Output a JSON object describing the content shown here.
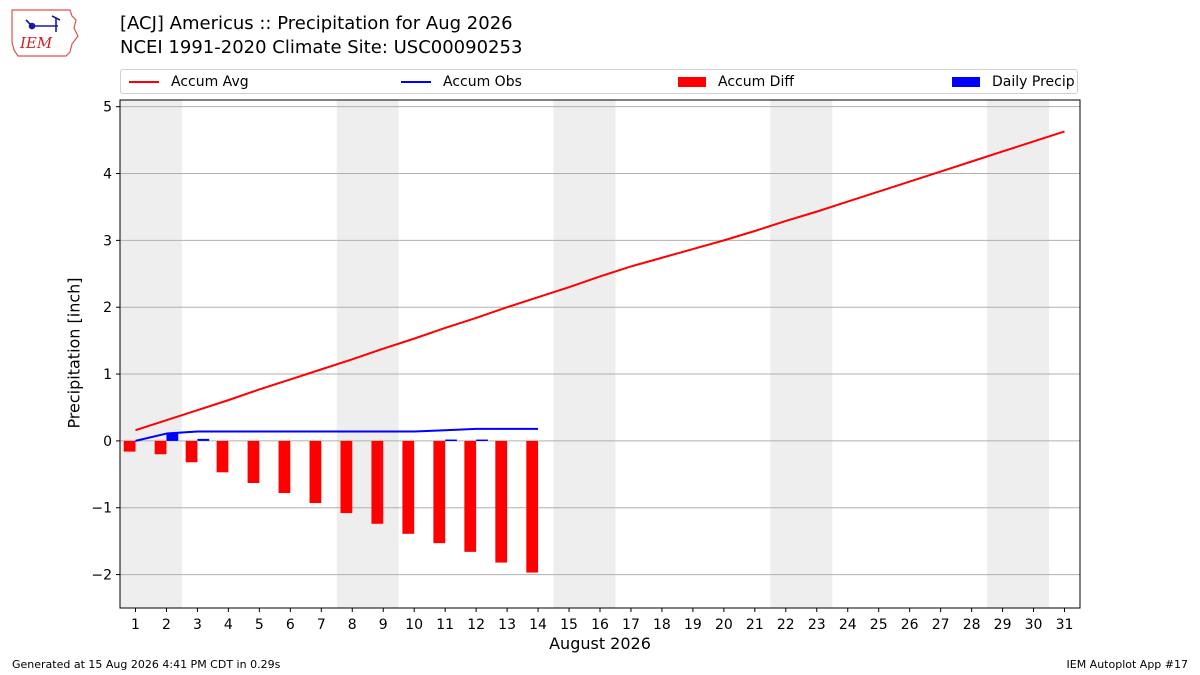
{
  "header": {
    "logo_text": "IEM",
    "title_line1": "[ACJ] Americus :: Precipitation for Aug 2026",
    "title_line2": "NCEI 1991-2020 Climate Site: USC00090253"
  },
  "footer": {
    "left": "Generated at 15 Aug 2026 4:41 PM CDT in 0.29s",
    "right": "IEM Autoplot App #17"
  },
  "colors": {
    "accum_avg": "#ff0000",
    "accum_obs": "#0000ff",
    "accum_diff": "#ff0000",
    "daily_precip": "#0000ff",
    "weekend_shade": "#eeeeee",
    "grid": "#b0b0b0"
  },
  "chart_data": {
    "type": "bar",
    "xlabel": "August 2026",
    "ylabel": "Precipitation [inch]",
    "ylim": [
      -2.5,
      5.1
    ],
    "yticks": [
      5,
      4,
      3,
      2,
      1,
      0,
      -1,
      -2
    ],
    "ytick_labels": [
      "5",
      "4",
      "3",
      "2",
      "1",
      "0",
      "−1",
      "−2"
    ],
    "xlim": [
      0.5,
      31.5
    ],
    "xticks": [
      1,
      2,
      3,
      4,
      5,
      6,
      7,
      8,
      9,
      10,
      11,
      12,
      13,
      14,
      15,
      16,
      17,
      18,
      19,
      20,
      21,
      22,
      23,
      24,
      25,
      26,
      27,
      28,
      29,
      30,
      31
    ],
    "grid": "horizontal",
    "legend_placement": "top",
    "shaded_weekends": [
      [
        1,
        2
      ],
      [
        8,
        9
      ],
      [
        15,
        16
      ],
      [
        22,
        23
      ],
      [
        29,
        30
      ]
    ],
    "legend": [
      "Accum Avg",
      "Accum Obs",
      "Accum Diff",
      "Daily Precip"
    ],
    "series": [
      {
        "name": "Accum Avg",
        "kind": "line",
        "x": [
          1,
          2,
          3,
          4,
          5,
          6,
          7,
          8,
          9,
          10,
          11,
          12,
          13,
          14,
          15,
          16,
          17,
          18,
          19,
          20,
          21,
          22,
          23,
          24,
          25,
          26,
          27,
          28,
          29,
          30,
          31
        ],
        "values": [
          0.16,
          0.31,
          0.46,
          0.61,
          0.77,
          0.92,
          1.07,
          1.22,
          1.38,
          1.53,
          1.69,
          1.84,
          2.0,
          2.15,
          2.3,
          2.46,
          2.61,
          2.74,
          2.87,
          3.0,
          3.14,
          3.29,
          3.43,
          3.58,
          3.73,
          3.88,
          4.03,
          4.18,
          4.33,
          4.48,
          4.63
        ]
      },
      {
        "name": "Accum Obs",
        "kind": "line",
        "x": [
          1,
          2,
          3,
          4,
          5,
          6,
          7,
          8,
          9,
          10,
          11,
          12,
          13,
          14
        ],
        "values": [
          0.0,
          0.11,
          0.14,
          0.14,
          0.14,
          0.14,
          0.14,
          0.14,
          0.14,
          0.14,
          0.16,
          0.18,
          0.18,
          0.18
        ]
      },
      {
        "name": "Accum Diff",
        "kind": "bar",
        "x": [
          1,
          2,
          3,
          4,
          5,
          6,
          7,
          8,
          9,
          10,
          11,
          12,
          13,
          14
        ],
        "values": [
          -0.16,
          -0.2,
          -0.32,
          -0.47,
          -0.63,
          -0.78,
          -0.93,
          -1.08,
          -1.24,
          -1.39,
          -1.53,
          -1.66,
          -1.82,
          -1.97
        ]
      },
      {
        "name": "Daily Precip",
        "kind": "bar",
        "x": [
          1,
          2,
          3,
          4,
          5,
          6,
          7,
          8,
          9,
          10,
          11,
          12,
          13,
          14
        ],
        "values": [
          0.0,
          0.11,
          0.03,
          0.0,
          0.0,
          0.0,
          0.0,
          0.0,
          0.0,
          0.0,
          0.02,
          0.02,
          0.0,
          0.0
        ]
      }
    ]
  }
}
